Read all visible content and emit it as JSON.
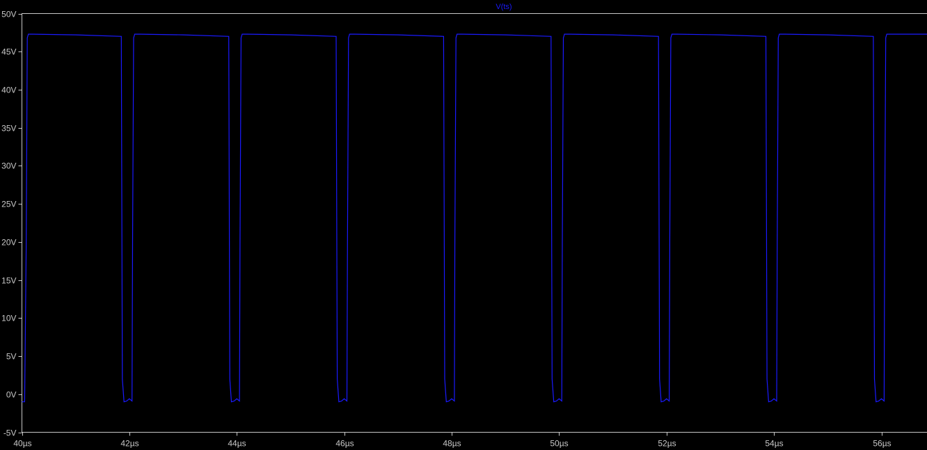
{
  "chart_data": {
    "type": "line",
    "title": "V(ts)",
    "xlabel": "",
    "ylabel": "",
    "xlim": [
      40,
      57
    ],
    "ylim": [
      -5,
      50
    ],
    "grid": false,
    "x_ticks": [
      40,
      42,
      44,
      46,
      48,
      50,
      52,
      54,
      56
    ],
    "x_tick_labels": [
      "40µs",
      "42µs",
      "44µs",
      "46µs",
      "48µs",
      "50µs",
      "52µs",
      "54µs",
      "56µs"
    ],
    "y_ticks": [
      -5,
      0,
      5,
      10,
      15,
      20,
      25,
      30,
      35,
      40,
      45,
      50
    ],
    "y_tick_labels": [
      "-5V",
      "0V",
      "5V",
      "10V",
      "15V",
      "20V",
      "25V",
      "30V",
      "35V",
      "40V",
      "45V",
      "50V"
    ],
    "series": [
      {
        "name": "V(ts)",
        "color": "#1a1aff",
        "x_unit": "µs",
        "y_unit": "V",
        "x": [
          40.0,
          40.05,
          40.08,
          40.1,
          40.12,
          40.2,
          41.0,
          41.85,
          41.87,
          41.9,
          41.95,
          42.0,
          42.05,
          42.06,
          42.08,
          42.1,
          42.2,
          43.0,
          43.85,
          43.87,
          43.9,
          43.95,
          44.0,
          44.05,
          44.06,
          44.08,
          44.1,
          44.2,
          45.0,
          45.85,
          45.87,
          45.9,
          45.95,
          46.0,
          46.05,
          46.06,
          46.08,
          46.1,
          46.2,
          47.0,
          47.85,
          47.87,
          47.9,
          47.95,
          48.0,
          48.05,
          48.06,
          48.08,
          48.1,
          48.2,
          49.0,
          49.85,
          49.87,
          49.9,
          49.95,
          50.0,
          50.05,
          50.06,
          50.08,
          50.1,
          50.2,
          51.0,
          51.85,
          51.87,
          51.9,
          51.95,
          52.0,
          52.05,
          52.06,
          52.08,
          52.1,
          52.2,
          53.0,
          53.85,
          53.87,
          53.9,
          53.95,
          54.0,
          54.05,
          54.06,
          54.08,
          54.1,
          54.2,
          55.0,
          55.85,
          55.87,
          55.9,
          55.95,
          56.0,
          56.05,
          56.06,
          56.08,
          56.1,
          56.2,
          57.0
        ],
        "y": [
          -1.0,
          -1.0,
          20.0,
          46.8,
          47.3,
          47.3,
          47.2,
          47.0,
          2.0,
          -1.0,
          -0.9,
          -0.6,
          -0.9,
          20.0,
          46.8,
          47.3,
          47.3,
          47.2,
          47.0,
          2.0,
          -1.0,
          -0.9,
          -0.6,
          -0.9,
          20.0,
          46.8,
          47.3,
          47.3,
          47.2,
          47.0,
          2.0,
          -1.0,
          -0.9,
          -0.6,
          -0.9,
          20.0,
          46.8,
          47.3,
          47.3,
          47.2,
          47.0,
          2.0,
          -1.0,
          -0.9,
          -0.6,
          -0.9,
          20.0,
          46.8,
          47.3,
          47.3,
          47.2,
          47.0,
          2.0,
          -1.0,
          -0.9,
          -0.6,
          -0.9,
          20.0,
          46.8,
          47.3,
          47.3,
          47.2,
          47.0,
          2.0,
          -1.0,
          -0.9,
          -0.6,
          -0.9,
          20.0,
          46.8,
          47.3,
          47.3,
          47.2,
          47.0,
          2.0,
          -1.0,
          -0.9,
          -0.6,
          -0.9,
          20.0,
          46.8,
          47.3,
          47.3,
          47.2,
          47.0,
          2.0,
          -1.0,
          -0.9,
          -0.6,
          -0.9,
          20.0,
          46.8,
          47.3,
          47.3,
          47.3
        ]
      }
    ]
  }
}
